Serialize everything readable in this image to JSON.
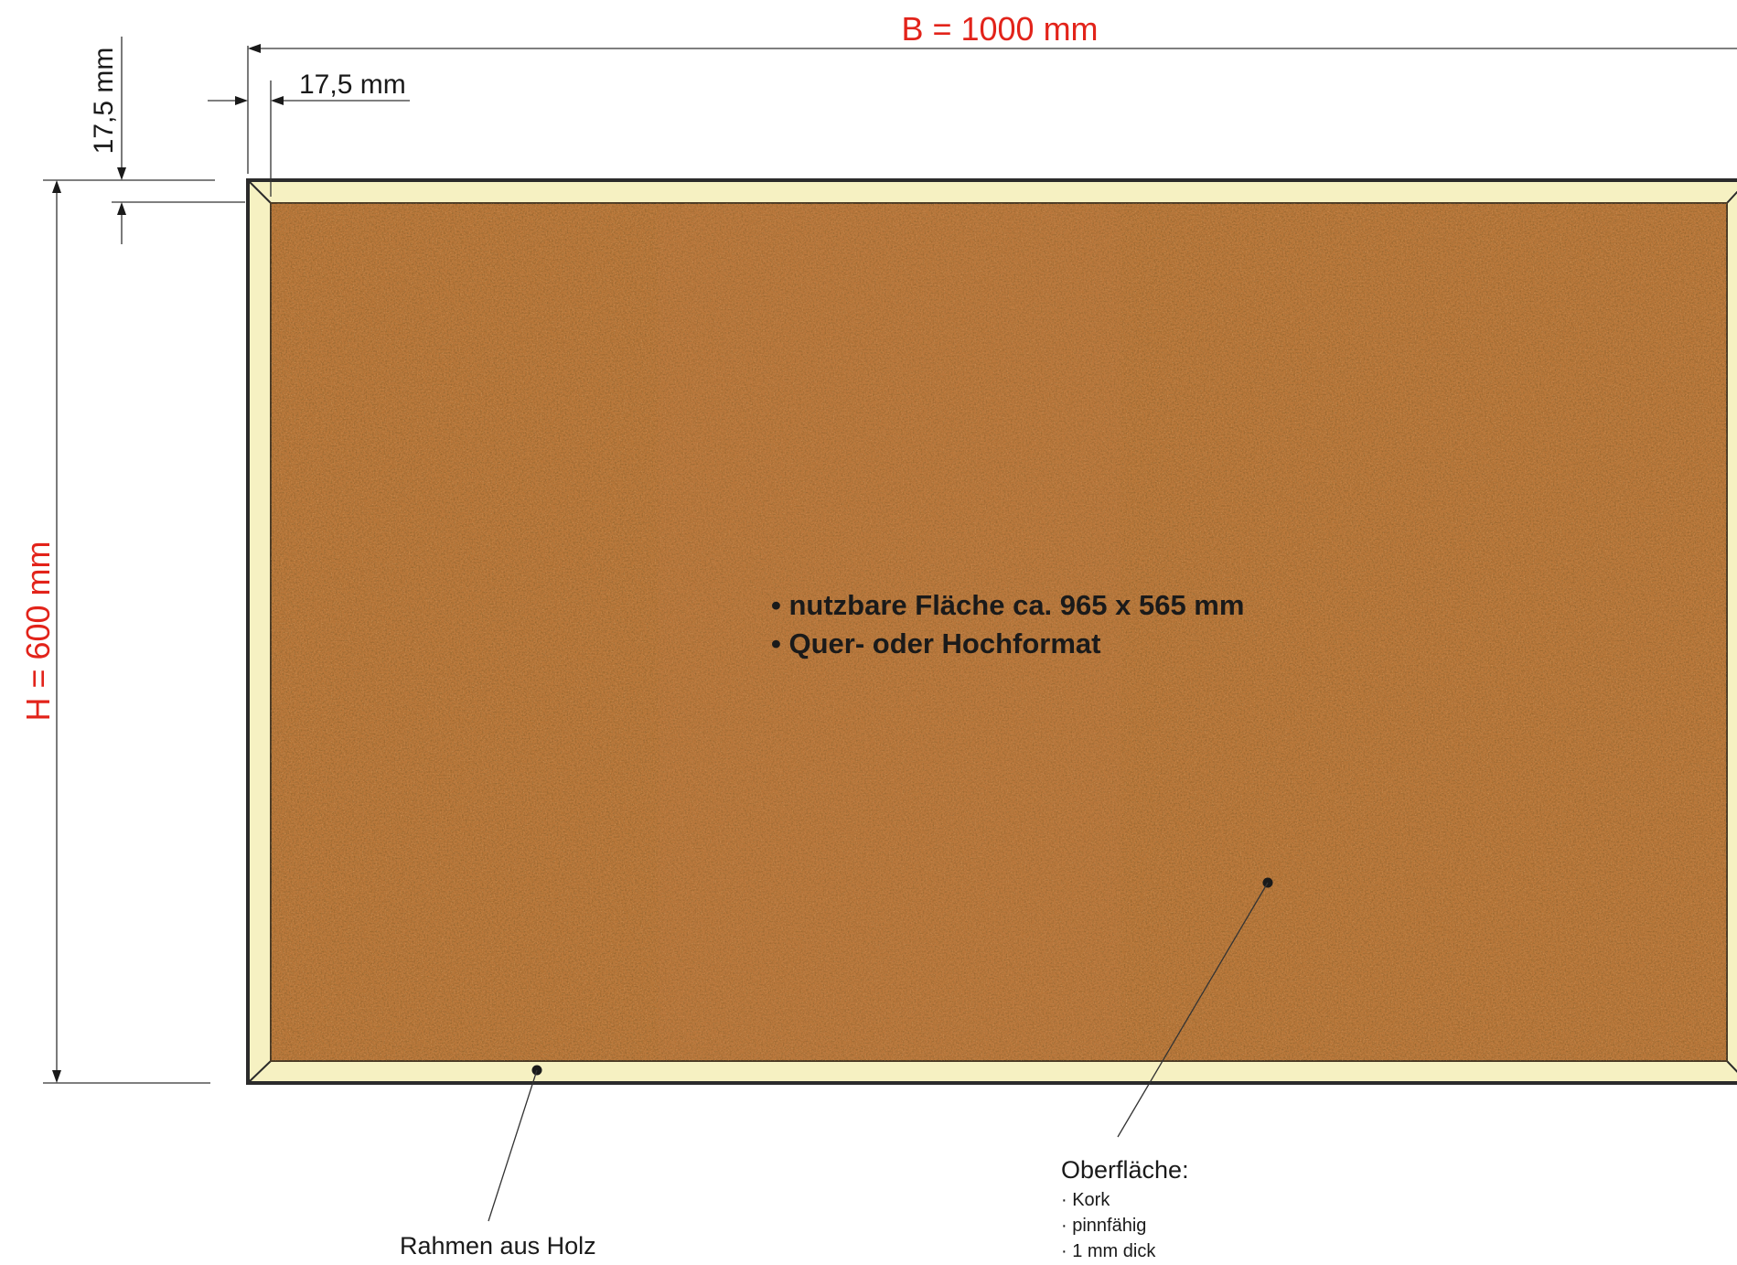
{
  "dimensions": {
    "width_label": "B = 1000 mm",
    "height_label": "H = 600 mm",
    "frame_side_label": "17,5 mm",
    "frame_top_label": "17,5 mm"
  },
  "surface_info": {
    "line1": "• nutzbare Fläche ca. 965 x 565 mm",
    "line2": "• Quer- oder Hochformat"
  },
  "frame_callout": {
    "label": "Rahmen aus Holz"
  },
  "surface_callout": {
    "title": "Oberfläche:",
    "items": [
      "· Kork",
      "· pinnfähig",
      "· 1 mm dick"
    ]
  },
  "colors": {
    "dimension_accent": "#e2231a",
    "frame_wood": "#f6f1c2",
    "cork": "#b9773a",
    "outline": "#2b2b2b"
  }
}
